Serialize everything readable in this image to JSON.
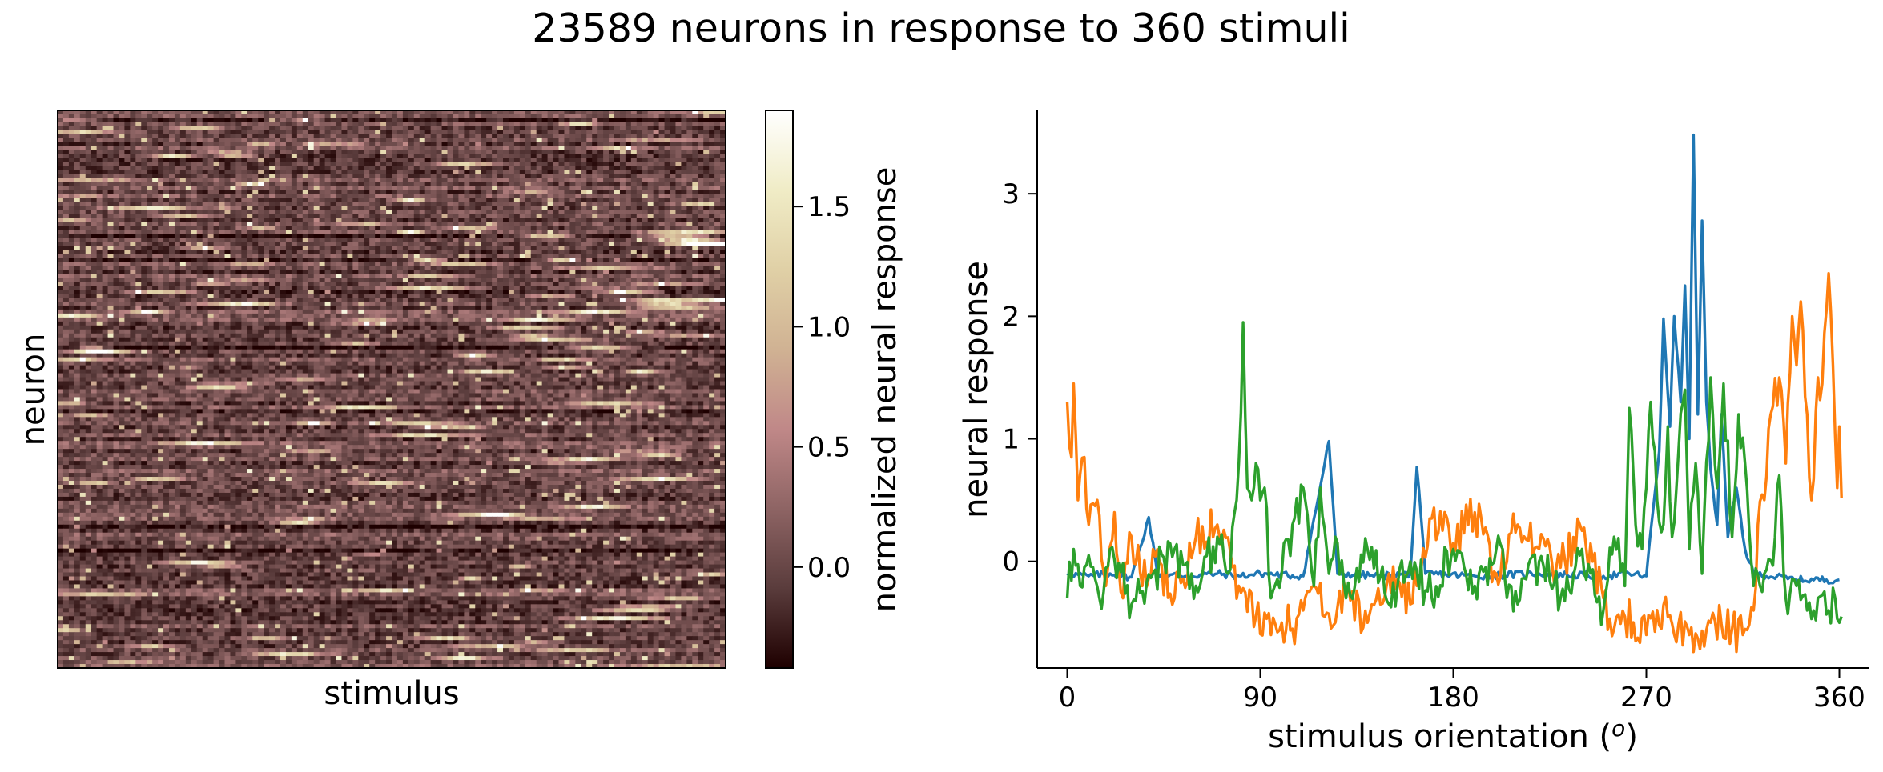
{
  "figure": {
    "title": "23589 neurons in response to 360 stimuli"
  },
  "chart_data": [
    {
      "type": "heatmap",
      "xlabel": "stimulus",
      "ylabel": "neuron",
      "n_neurons": 23589,
      "n_stimuli": 360,
      "colormap": "pink",
      "colorbar": {
        "label": "normalized neural response",
        "range": [
          -0.42,
          1.9
        ],
        "ticks": [
          0.0,
          0.5,
          1.0,
          1.5
        ],
        "tick_labels": [
          "0.0",
          "0.5",
          "1.0",
          "1.5"
        ],
        "colors": [
          "#1e0000",
          "#5a3c3c",
          "#8e6464",
          "#c08888",
          "#d0b293",
          "#e0d0a6",
          "#f0ecc6",
          "#ffffff"
        ]
      }
    },
    {
      "type": "line",
      "xlabel": "stimulus orientation (o)",
      "ylabel": "neural response",
      "xlim": [
        -14,
        374
      ],
      "ylim": [
        -0.87,
        3.68
      ],
      "xticks": [
        0,
        90,
        180,
        270,
        360
      ],
      "xtick_labels": [
        "0",
        "90",
        "180",
        "270",
        "360"
      ],
      "yticks": [
        0,
        1,
        2,
        3
      ],
      "ytick_labels": [
        "0",
        "1",
        "2",
        "3"
      ],
      "series": [
        {
          "color": "#1f77b4",
          "description": "baseline near -0.1 with sharp peak around 280-295 deg",
          "points": [
            [
              0,
              -0.1
            ],
            [
              10,
              -0.12
            ],
            [
              20,
              -0.1
            ],
            [
              30,
              -0.13
            ],
            [
              38,
              0.36
            ],
            [
              42,
              -0.1
            ],
            [
              55,
              -0.12
            ],
            [
              70,
              -0.1
            ],
            [
              80,
              -0.12
            ],
            [
              90,
              -0.1
            ],
            [
              110,
              -0.12
            ],
            [
              122,
              0.98
            ],
            [
              126,
              -0.1
            ],
            [
              145,
              -0.12
            ],
            [
              160,
              -0.1
            ],
            [
              163,
              0.77
            ],
            [
              167,
              -0.1
            ],
            [
              190,
              -0.12
            ],
            [
              220,
              -0.1
            ],
            [
              250,
              -0.12
            ],
            [
              262,
              -0.1
            ],
            [
              270,
              -0.12
            ],
            [
              276,
              0.9
            ],
            [
              278,
              1.98
            ],
            [
              281,
              1.1
            ],
            [
              283,
              2.0
            ],
            [
              286,
              1.3
            ],
            [
              288,
              2.25
            ],
            [
              290,
              1.0
            ],
            [
              292,
              3.48
            ],
            [
              294,
              1.2
            ],
            [
              296,
              2.78
            ],
            [
              298,
              1.3
            ],
            [
              300,
              0.75
            ],
            [
              303,
              0.3
            ],
            [
              305,
              1.2
            ],
            [
              308,
              0.2
            ],
            [
              312,
              0.6
            ],
            [
              316,
              0.1
            ],
            [
              320,
              -0.1
            ],
            [
              340,
              -0.15
            ],
            [
              360,
              -0.15
            ]
          ]
        },
        {
          "color": "#ff7f0e",
          "description": "high at 0 deg, low through middle, rises to ~2.35 near 345-355 deg",
          "points": [
            [
              0,
              1.3
            ],
            [
              2,
              0.85
            ],
            [
              3,
              1.45
            ],
            [
              5,
              0.5
            ],
            [
              8,
              0.85
            ],
            [
              10,
              0.3
            ],
            [
              14,
              0.5
            ],
            [
              18,
              -0.2
            ],
            [
              22,
              0.4
            ],
            [
              26,
              -0.3
            ],
            [
              30,
              0.2
            ],
            [
              35,
              -0.2
            ],
            [
              40,
              0.1
            ],
            [
              50,
              -0.3
            ],
            [
              60,
              0.2
            ],
            [
              70,
              0.3
            ],
            [
              80,
              -0.2
            ],
            [
              88,
              -0.45
            ],
            [
              95,
              -0.6
            ],
            [
              100,
              -0.5
            ],
            [
              105,
              -0.55
            ],
            [
              110,
              -0.4
            ],
            [
              115,
              -0.2
            ],
            [
              120,
              -0.45
            ],
            [
              125,
              -0.5
            ],
            [
              130,
              -0.25
            ],
            [
              140,
              -0.5
            ],
            [
              150,
              -0.1
            ],
            [
              160,
              -0.35
            ],
            [
              170,
              0.35
            ],
            [
              180,
              0.15
            ],
            [
              190,
              0.4
            ],
            [
              200,
              -0.1
            ],
            [
              210,
              0.3
            ],
            [
              220,
              0.1
            ],
            [
              230,
              -0.05
            ],
            [
              240,
              0.25
            ],
            [
              250,
              -0.3
            ],
            [
              255,
              -0.55
            ],
            [
              260,
              -0.45
            ],
            [
              270,
              -0.6
            ],
            [
              280,
              -0.45
            ],
            [
              290,
              -0.6
            ],
            [
              300,
              -0.5
            ],
            [
              310,
              -0.55
            ],
            [
              315,
              -0.6
            ],
            [
              320,
              -0.4
            ],
            [
              322,
              0.3
            ],
            [
              325,
              0.5
            ],
            [
              328,
              1.2
            ],
            [
              332,
              1.5
            ],
            [
              335,
              0.8
            ],
            [
              338,
              2.0
            ],
            [
              340,
              1.6
            ],
            [
              342,
              2.12
            ],
            [
              345,
              1.2
            ],
            [
              347,
              0.5
            ],
            [
              350,
              1.5
            ],
            [
              352,
              1.45
            ],
            [
              355,
              2.35
            ],
            [
              357,
              1.6
            ],
            [
              359,
              0.6
            ],
            [
              360,
              1.1
            ],
            [
              361,
              0.52
            ]
          ]
        },
        {
          "color": "#2ca02c",
          "description": "noisy around 0 with peaks near 80 deg and 270-330 deg",
          "points": [
            [
              0,
              -0.3
            ],
            [
              3,
              0.1
            ],
            [
              6,
              -0.2
            ],
            [
              10,
              0.05
            ],
            [
              15,
              -0.3
            ],
            [
              20,
              0.1
            ],
            [
              30,
              -0.35
            ],
            [
              40,
              -0.1
            ],
            [
              50,
              0.1
            ],
            [
              60,
              -0.2
            ],
            [
              70,
              0.2
            ],
            [
              75,
              -0.1
            ],
            [
              78,
              0.4
            ],
            [
              80,
              0.8
            ],
            [
              82,
              1.95
            ],
            [
              84,
              0.6
            ],
            [
              86,
              0.5
            ],
            [
              88,
              0.8
            ],
            [
              90,
              0.5
            ],
            [
              92,
              0.6
            ],
            [
              95,
              -0.3
            ],
            [
              100,
              -0.1
            ],
            [
              105,
              0.3
            ],
            [
              110,
              0.6
            ],
            [
              115,
              -0.2
            ],
            [
              118,
              0.6
            ],
            [
              122,
              -0.1
            ],
            [
              125,
              0.2
            ],
            [
              130,
              -0.3
            ],
            [
              140,
              0.1
            ],
            [
              150,
              -0.35
            ],
            [
              160,
              0.0
            ],
            [
              170,
              -0.3
            ],
            [
              180,
              0.1
            ],
            [
              190,
              -0.2
            ],
            [
              200,
              0.1
            ],
            [
              210,
              -0.35
            ],
            [
              220,
              0.0
            ],
            [
              230,
              -0.3
            ],
            [
              240,
              0.1
            ],
            [
              250,
              -0.4
            ],
            [
              255,
              0.2
            ],
            [
              260,
              -0.2
            ],
            [
              262,
              1.25
            ],
            [
              265,
              0.3
            ],
            [
              268,
              0.1
            ],
            [
              270,
              0.6
            ],
            [
              272,
              1.3
            ],
            [
              275,
              0.5
            ],
            [
              278,
              0.3
            ],
            [
              280,
              1.1
            ],
            [
              282,
              0.2
            ],
            [
              285,
              0.9
            ],
            [
              288,
              1.4
            ],
            [
              290,
              0.1
            ],
            [
              293,
              0.8
            ],
            [
              296,
              -0.1
            ],
            [
              300,
              1.5
            ],
            [
              303,
              0.6
            ],
            [
              306,
              1.45
            ],
            [
              310,
              0.2
            ],
            [
              313,
              1.2
            ],
            [
              316,
              0.8
            ],
            [
              320,
              -0.2
            ],
            [
              325,
              -0.1
            ],
            [
              330,
              0.2
            ],
            [
              332,
              0.7
            ],
            [
              335,
              -0.3
            ],
            [
              340,
              -0.2
            ],
            [
              345,
              -0.4
            ],
            [
              350,
              -0.3
            ],
            [
              355,
              -0.4
            ],
            [
              358,
              -0.3
            ],
            [
              360,
              -0.5
            ],
            [
              361,
              -0.45
            ]
          ]
        }
      ]
    }
  ]
}
